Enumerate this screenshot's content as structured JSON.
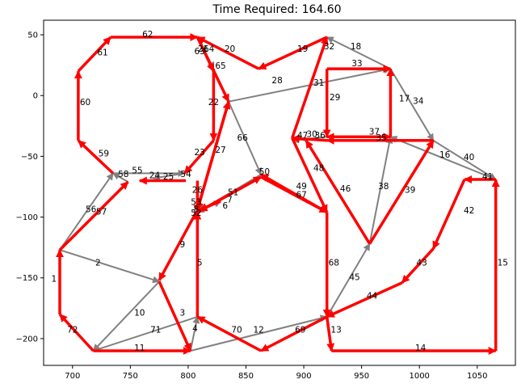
{
  "chart_data": {
    "type": "scatter",
    "title": "Time Required: 164.60",
    "xlabel": "",
    "ylabel": "",
    "xlim": [
      675,
      1083
    ],
    "ylim": [
      -222,
      62
    ],
    "x_ticks": [
      700,
      750,
      800,
      850,
      900,
      950,
      1000,
      1050
    ],
    "y_ticks": [
      50,
      0,
      -50,
      -100,
      -150,
      -200
    ],
    "x_tick_labels": [
      "700",
      "750",
      "800",
      "850",
      "900",
      "950",
      "1000",
      "1050"
    ],
    "y_tick_labels": [
      "50",
      "0",
      "−50",
      "−100",
      "−150",
      "−200"
    ],
    "colors": {
      "route": "#ff0000",
      "other": "#808080"
    },
    "edges": [
      {
        "label": "1",
        "from": [
          689,
          -180
        ],
        "to": [
          689,
          -127
        ],
        "route": true
      },
      {
        "label": "2",
        "from": [
          689,
          -127
        ],
        "to": [
          775,
          -153
        ],
        "route": false
      },
      {
        "label": "3",
        "from": [
          775,
          -153
        ],
        "to": [
          802,
          -210
        ],
        "route": true
      },
      {
        "label": "4",
        "from": [
          802,
          -210
        ],
        "to": [
          808,
          -182
        ],
        "route": false
      },
      {
        "label": "5",
        "from": [
          808,
          -182
        ],
        "to": [
          808,
          -96
        ],
        "route": true
      },
      {
        "label": "6",
        "from": [
          808,
          -96
        ],
        "to": [
          828,
          -87
        ],
        "route": false
      },
      {
        "label": "7",
        "from": [
          828,
          -87
        ],
        "to": [
          810,
          -94
        ],
        "route": true
      },
      {
        "label": "8",
        "from": [
          810,
          -94
        ],
        "to": [
          810,
          -95
        ],
        "route": false
      },
      {
        "label": "9",
        "from": [
          807,
          -96
        ],
        "to": [
          775,
          -152
        ],
        "route": true
      },
      {
        "label": "10",
        "from": [
          775,
          -153
        ],
        "to": [
          718,
          -210
        ],
        "route": false
      },
      {
        "label": "11",
        "from": [
          718,
          -210
        ],
        "to": [
          802,
          -210
        ],
        "route": true
      },
      {
        "label": "12",
        "from": [
          802,
          -210
        ],
        "to": [
          920,
          -182
        ],
        "route": false
      },
      {
        "label": "13",
        "from": [
          920,
          -182
        ],
        "to": [
          924,
          -210
        ],
        "route": true
      },
      {
        "label": "14",
        "from": [
          924,
          -210
        ],
        "to": [
          1066,
          -210
        ],
        "route": true
      },
      {
        "label": "15",
        "from": [
          1066,
          -210
        ],
        "to": [
          1066,
          -69
        ],
        "route": true
      },
      {
        "label": "16",
        "from": [
          1066,
          -69
        ],
        "to": [
          975,
          -34
        ],
        "route": false
      },
      {
        "label": "17",
        "from": [
          975,
          -34
        ],
        "to": [
          975,
          22
        ],
        "route": true
      },
      {
        "label": "18",
        "from": [
          975,
          22
        ],
        "to": [
          920,
          48
        ],
        "route": false
      },
      {
        "label": "19",
        "from": [
          920,
          48
        ],
        "to": [
          861,
          22
        ],
        "route": true
      },
      {
        "label": "20",
        "from": [
          861,
          22
        ],
        "to": [
          808,
          48
        ],
        "route": true
      },
      {
        "label": "21",
        "from": [
          808,
          48
        ],
        "to": [
          822,
          22
        ],
        "route": false
      },
      {
        "label": "22",
        "from": [
          822,
          22
        ],
        "to": [
          822,
          -37
        ],
        "route": true
      },
      {
        "label": "23",
        "from": [
          822,
          -37
        ],
        "to": [
          797,
          -64
        ],
        "route": true
      },
      {
        "label": "24",
        "from": [
          797,
          -64
        ],
        "to": [
          770,
          -68
        ],
        "route": false
      },
      {
        "label": "25",
        "from": [
          798,
          -70
        ],
        "to": [
          758,
          -70
        ],
        "route": true
      },
      {
        "label": "26",
        "from": [
          835,
          -5
        ],
        "to": [
          808,
          -94
        ],
        "route": true
      },
      {
        "label": "27",
        "from": [
          808,
          -94
        ],
        "to": [
          835,
          -5
        ],
        "route": true
      },
      {
        "label": "28",
        "from": [
          835,
          -5
        ],
        "to": [
          975,
          22
        ],
        "route": false
      },
      {
        "label": "29",
        "from": [
          920,
          22
        ],
        "to": [
          920,
          -34
        ],
        "route": true
      },
      {
        "label": "30",
        "from": [
          920,
          -34
        ],
        "to": [
          890,
          -37
        ],
        "route": false
      },
      {
        "label": "31",
        "from": [
          920,
          -37
        ],
        "to": [
          890,
          -35
        ],
        "route": true
      },
      {
        "label": "32",
        "from": [
          890,
          -35
        ],
        "to": [
          920,
          48
        ],
        "route": true
      },
      {
        "label": "33",
        "from": [
          920,
          22
        ],
        "to": [
          975,
          22
        ],
        "route": true
      },
      {
        "label": "34",
        "from": [
          975,
          22
        ],
        "to": [
          1012,
          -37
        ],
        "route": false
      },
      {
        "label": "35",
        "from": [
          1012,
          -37
        ],
        "to": [
          920,
          -37
        ],
        "route": true
      },
      {
        "label": "36",
        "from": [
          920,
          -34
        ],
        "to": [
          975,
          -34
        ],
        "route": true
      },
      {
        "label": "37",
        "from": [
          975,
          -34
        ],
        "to": [
          920,
          -34
        ],
        "route": true
      },
      {
        "label": "38",
        "from": [
          957,
          -122
        ],
        "to": [
          975,
          -34
        ],
        "route": false
      },
      {
        "label": "39",
        "from": [
          957,
          -122
        ],
        "to": [
          1012,
          -37
        ],
        "route": true
      },
      {
        "label": "40",
        "from": [
          1012,
          -37
        ],
        "to": [
          1066,
          -69
        ],
        "route": false
      },
      {
        "label": "41",
        "from": [
          1066,
          -69
        ],
        "to": [
          1039,
          -69
        ],
        "route": true
      },
      {
        "label": "42",
        "from": [
          1039,
          -69
        ],
        "to": [
          1012,
          -126
        ],
        "route": true
      },
      {
        "label": "43",
        "from": [
          1012,
          -126
        ],
        "to": [
          985,
          -154
        ],
        "route": true
      },
      {
        "label": "44",
        "from": [
          985,
          -154
        ],
        "to": [
          920,
          -182
        ],
        "route": true
      },
      {
        "label": "45",
        "from": [
          920,
          -182
        ],
        "to": [
          957,
          -122
        ],
        "route": false
      },
      {
        "label": "46",
        "from": [
          957,
          -122
        ],
        "to": [
          902,
          -37
        ],
        "route": true
      },
      {
        "label": "47",
        "from": [
          902,
          -37
        ],
        "to": [
          890,
          -35
        ],
        "route": false
      },
      {
        "label": "48",
        "from": [
          890,
          -35
        ],
        "to": [
          920,
          -96
        ],
        "route": true
      },
      {
        "label": "49",
        "from": [
          920,
          -96
        ],
        "to": [
          863,
          -65
        ],
        "route": true
      },
      {
        "label": "50",
        "from": [
          863,
          -65
        ],
        "to": [
          808,
          -96
        ],
        "route": false
      },
      {
        "label": "51",
        "from": [
          808,
          -96
        ],
        "to": [
          863,
          -67
        ],
        "route": true
      },
      {
        "label": "52",
        "from": [
          863,
          -67
        ],
        "to": [
          810,
          -95
        ],
        "route": true
      },
      {
        "label": "53",
        "from": [
          810,
          -95
        ],
        "to": [
          808,
          -96
        ],
        "route": false
      },
      {
        "label": "54",
        "from": [
          808,
          -70
        ],
        "to": [
          808,
          -96
        ],
        "route": true
      },
      {
        "label": "55",
        "from": [
          735,
          -64
        ],
        "to": [
          797,
          -64
        ],
        "route": false
      },
      {
        "label": "56",
        "from": [
          689,
          -127
        ],
        "to": [
          735,
          -64
        ],
        "route": false
      },
      {
        "label": "57",
        "from": [
          689,
          -127
        ],
        "to": [
          748,
          -71
        ],
        "route": true
      },
      {
        "label": "58",
        "from": [
          748,
          -71
        ],
        "to": [
          735,
          -64
        ],
        "route": false
      },
      {
        "label": "59",
        "from": [
          735,
          -64
        ],
        "to": [
          705,
          -37
        ],
        "route": true
      },
      {
        "label": "60",
        "from": [
          705,
          -37
        ],
        "to": [
          705,
          20
        ],
        "route": true
      },
      {
        "label": "61",
        "from": [
          705,
          20
        ],
        "to": [
          733,
          48
        ],
        "route": true
      },
      {
        "label": "62",
        "from": [
          733,
          48
        ],
        "to": [
          808,
          48
        ],
        "route": true
      },
      {
        "label": "63",
        "from": [
          808,
          48
        ],
        "to": [
          822,
          20
        ],
        "route": true
      },
      {
        "label": "64",
        "from": [
          808,
          48
        ],
        "to": [
          835,
          -5
        ],
        "route": true
      },
      {
        "label": "65",
        "from": [
          808,
          48
        ],
        "to": [
          822,
          22
        ],
        "route": false
      },
      {
        "label": "66",
        "from": [
          835,
          -5
        ],
        "to": [
          863,
          -65
        ],
        "route": false
      },
      {
        "label": "67",
        "from": [
          863,
          -67
        ],
        "to": [
          920,
          -96
        ],
        "route": true
      },
      {
        "label": "68",
        "from": [
          920,
          -96
        ],
        "to": [
          920,
          -182
        ],
        "route": true
      },
      {
        "label": "69",
        "from": [
          920,
          -182
        ],
        "to": [
          863,
          -210
        ],
        "route": true
      },
      {
        "label": "70",
        "from": [
          863,
          -210
        ],
        "to": [
          808,
          -182
        ],
        "route": true
      },
      {
        "label": "71",
        "from": [
          808,
          -182
        ],
        "to": [
          718,
          -210
        ],
        "route": false
      },
      {
        "label": "72",
        "from": [
          718,
          -210
        ],
        "to": [
          689,
          -180
        ],
        "route": true
      }
    ],
    "labels": [
      {
        "text": "1",
        "x": 684,
        "y": -151
      },
      {
        "text": "2",
        "x": 722,
        "y": -138
      },
      {
        "text": "3",
        "x": 795,
        "y": -179
      },
      {
        "text": "4",
        "x": 806,
        "y": -192
      },
      {
        "text": "5",
        "x": 810,
        "y": -138
      },
      {
        "text": "6",
        "x": 832,
        "y": -91
      },
      {
        "text": "7",
        "x": 836,
        "y": -86
      },
      {
        "text": "8",
        "x": 807,
        "y": -94
      },
      {
        "text": "9",
        "x": 795,
        "y": -123
      },
      {
        "text": "10",
        "x": 758,
        "y": -179
      },
      {
        "text": "11",
        "x": 758,
        "y": -208
      },
      {
        "text": "12",
        "x": 861,
        "y": -193
      },
      {
        "text": "13",
        "x": 928,
        "y": -193
      },
      {
        "text": "14",
        "x": 1001,
        "y": -208
      },
      {
        "text": "15",
        "x": 1072,
        "y": -138
      },
      {
        "text": "16",
        "x": 1022,
        "y": -49
      },
      {
        "text": "17",
        "x": 987,
        "y": -3
      },
      {
        "text": "18",
        "x": 945,
        "y": 40
      },
      {
        "text": "19",
        "x": 899,
        "y": 38
      },
      {
        "text": "20",
        "x": 836,
        "y": 38
      },
      {
        "text": "21",
        "x": 813,
        "y": 38
      },
      {
        "text": "22",
        "x": 822,
        "y": -6
      },
      {
        "text": "23",
        "x": 810,
        "y": -47
      },
      {
        "text": "24",
        "x": 771,
        "y": -66
      },
      {
        "text": "25",
        "x": 783,
        "y": -67
      },
      {
        "text": "26",
        "x": 808,
        "y": -78
      },
      {
        "text": "27",
        "x": 828,
        "y": -45
      },
      {
        "text": "28",
        "x": 877,
        "y": 12
      },
      {
        "text": "29",
        "x": 927,
        "y": -2
      },
      {
        "text": "30",
        "x": 907,
        "y": -32
      },
      {
        "text": "31",
        "x": 913,
        "y": 10
      },
      {
        "text": "32",
        "x": 922,
        "y": 40
      },
      {
        "text": "33",
        "x": 946,
        "y": 26
      },
      {
        "text": "34",
        "x": 999,
        "y": -5
      },
      {
        "text": "35",
        "x": 967,
        "y": -35
      },
      {
        "text": "36",
        "x": 914,
        "y": -33
      },
      {
        "text": "37",
        "x": 961,
        "y": -30
      },
      {
        "text": "38",
        "x": 969,
        "y": -75
      },
      {
        "text": "39",
        "x": 992,
        "y": -78
      },
      {
        "text": "40",
        "x": 1043,
        "y": -51
      },
      {
        "text": "41",
        "x": 1059,
        "y": -67
      },
      {
        "text": "42",
        "x": 1043,
        "y": -95
      },
      {
        "text": "43",
        "x": 1002,
        "y": -138
      },
      {
        "text": "44",
        "x": 959,
        "y": -165
      },
      {
        "text": "45",
        "x": 944,
        "y": -150
      },
      {
        "text": "46",
        "x": 936,
        "y": -77
      },
      {
        "text": "47",
        "x": 899,
        "y": -33
      },
      {
        "text": "48",
        "x": 913,
        "y": -60
      },
      {
        "text": "49",
        "x": 898,
        "y": -75
      },
      {
        "text": "50",
        "x": 866,
        "y": -63
      },
      {
        "text": "51",
        "x": 839,
        "y": -80
      },
      {
        "text": "52",
        "x": 807,
        "y": -97
      },
      {
        "text": "53",
        "x": 807,
        "y": -88
      },
      {
        "text": "54",
        "x": 798,
        "y": -65
      },
      {
        "text": "55",
        "x": 756,
        "y": -62
      },
      {
        "text": "56",
        "x": 716,
        "y": -94
      },
      {
        "text": "57",
        "x": 725,
        "y": -96
      },
      {
        "text": "58",
        "x": 744,
        "y": -65
      },
      {
        "text": "59",
        "x": 727,
        "y": -48
      },
      {
        "text": "60",
        "x": 711,
        "y": -6
      },
      {
        "text": "61",
        "x": 726,
        "y": 35
      },
      {
        "text": "62",
        "x": 765,
        "y": 50
      },
      {
        "text": "63",
        "x": 810,
        "y": 36
      },
      {
        "text": "64",
        "x": 818,
        "y": 38
      },
      {
        "text": "65",
        "x": 828,
        "y": 24
      },
      {
        "text": "66",
        "x": 847,
        "y": -35
      },
      {
        "text": "67",
        "x": 898,
        "y": -82
      },
      {
        "text": "68",
        "x": 926,
        "y": -138
      },
      {
        "text": "69",
        "x": 897,
        "y": -193
      },
      {
        "text": "70",
        "x": 842,
        "y": -193
      },
      {
        "text": "71",
        "x": 772,
        "y": -193
      },
      {
        "text": "72",
        "x": 700,
        "y": -193
      }
    ]
  }
}
